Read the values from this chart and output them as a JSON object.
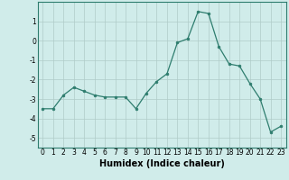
{
  "x": [
    0,
    1,
    2,
    3,
    4,
    5,
    6,
    7,
    8,
    9,
    10,
    11,
    12,
    13,
    14,
    15,
    16,
    17,
    18,
    19,
    20,
    21,
    22,
    23
  ],
  "y": [
    -3.5,
    -3.5,
    -2.8,
    -2.4,
    -2.6,
    -2.8,
    -2.9,
    -2.9,
    -2.9,
    -3.5,
    -2.7,
    -2.1,
    -1.7,
    -0.1,
    0.1,
    1.5,
    1.4,
    -0.3,
    -1.2,
    -1.3,
    -2.2,
    -3.0,
    -4.7,
    -4.4
  ],
  "line_color": "#2e7d6e",
  "marker": "o",
  "marker_size": 2.0,
  "bg_color": "#d0ecea",
  "grid_color": "#b0ccc8",
  "xlabel": "Humidex (Indice chaleur)",
  "xlim": [
    -0.5,
    23.5
  ],
  "ylim": [
    -5.5,
    2.0
  ],
  "yticks": [
    -5,
    -4,
    -3,
    -2,
    -1,
    0,
    1
  ],
  "xticks": [
    0,
    1,
    2,
    3,
    4,
    5,
    6,
    7,
    8,
    9,
    10,
    11,
    12,
    13,
    14,
    15,
    16,
    17,
    18,
    19,
    20,
    21,
    22,
    23
  ],
  "tick_fontsize": 5.5,
  "label_fontsize": 7.0
}
